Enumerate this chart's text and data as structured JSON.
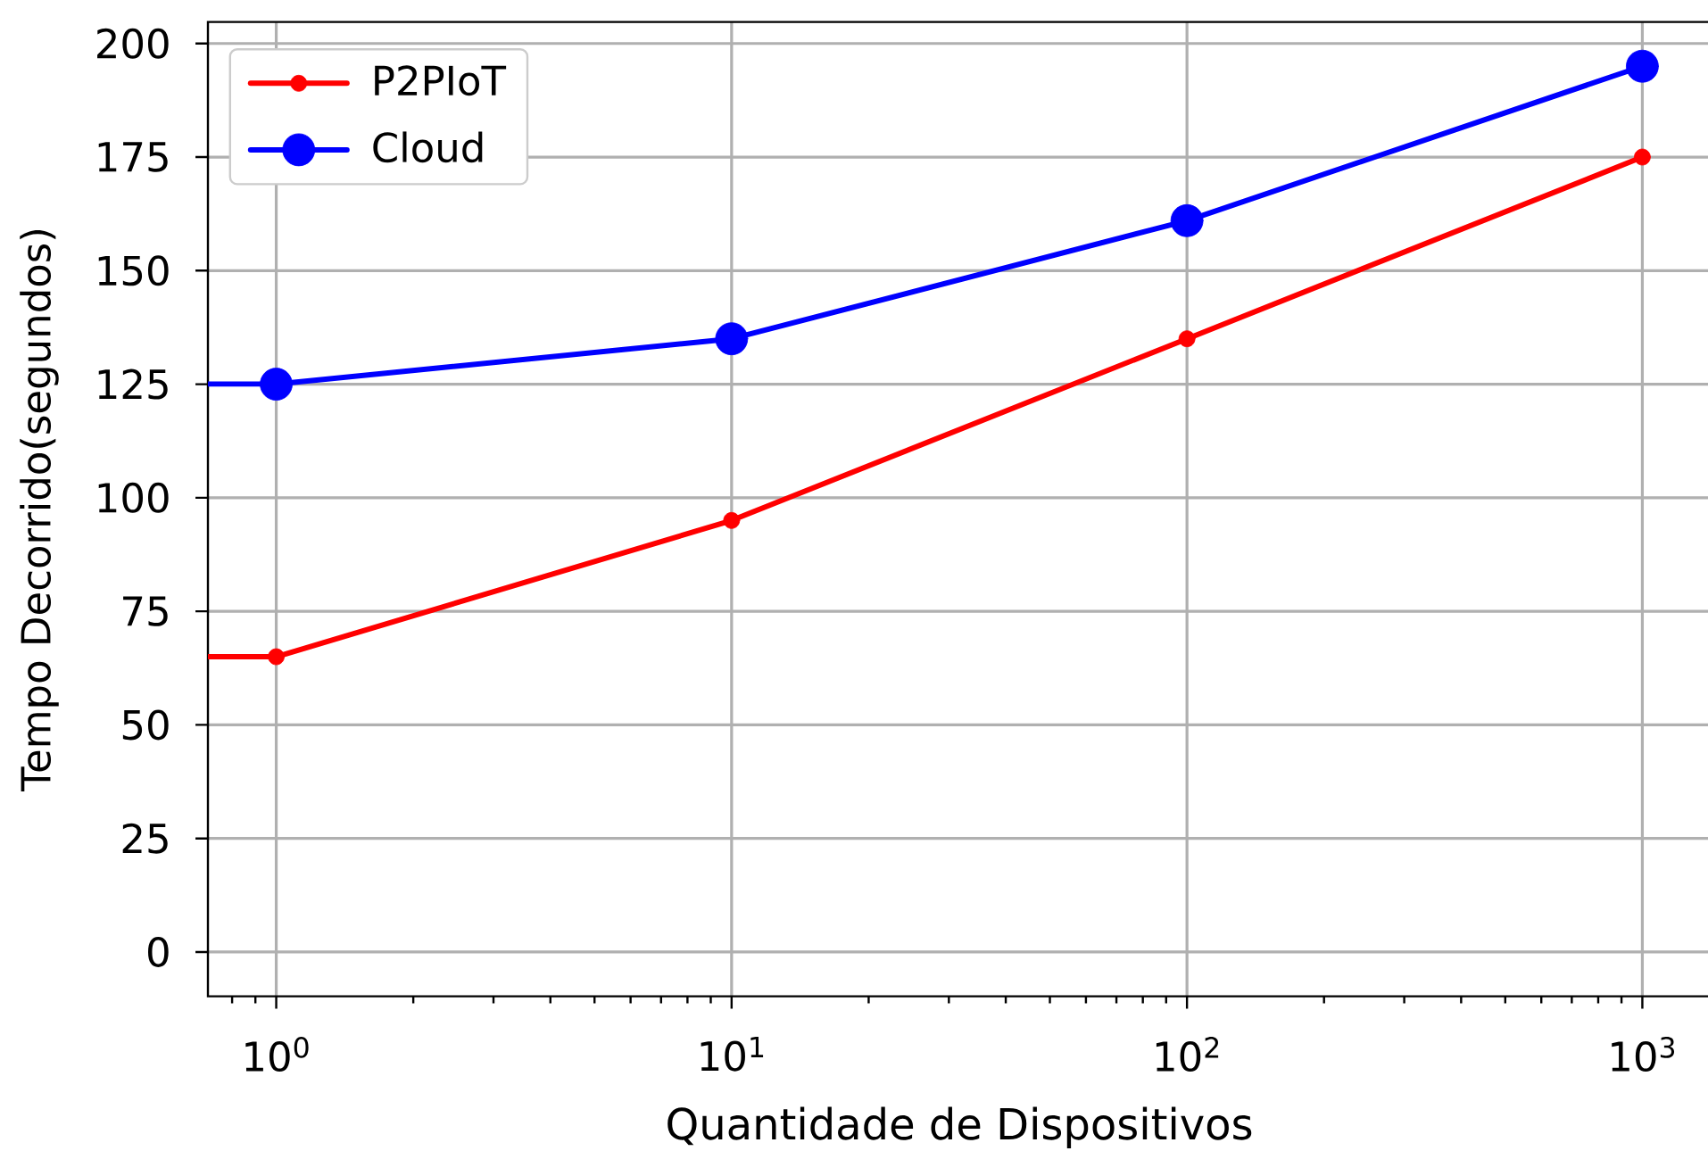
{
  "chart_data": {
    "type": "line",
    "xlabel": "Quantidade de Dispositivos",
    "ylabel": "Tempo Decorrido(segundos)",
    "x": [
      0.708,
      1,
      10,
      100,
      1000
    ],
    "series": [
      {
        "name": "P2PIoT",
        "color": "#ff0000",
        "values": [
          65,
          65,
          95,
          135,
          175
        ]
      },
      {
        "name": "Cloud",
        "color": "#0000ff",
        "values": [
          125,
          125,
          135,
          161,
          195
        ]
      }
    ],
    "log": "x",
    "xlim": [
      0.708,
      1413
    ],
    "ylim": [
      -9.75,
      204.75
    ],
    "xticks": [
      {
        "value": 1,
        "label": "10$^{0}$"
      },
      {
        "value": 10,
        "label": "10$^{1}$"
      },
      {
        "value": 100,
        "label": "10$^{2}$"
      },
      {
        "value": 1000,
        "label": "10$^{3}$"
      }
    ],
    "yticks": [
      0,
      25,
      50,
      75,
      100,
      125,
      150,
      175,
      200
    ],
    "grid": true,
    "legend": "top left",
    "marker": "circle"
  }
}
